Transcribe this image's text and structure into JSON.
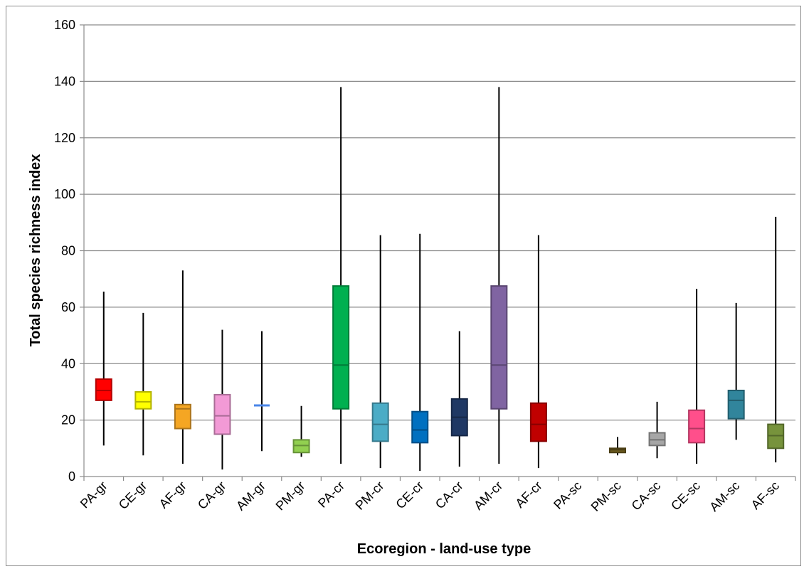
{
  "chart_data": {
    "type": "boxplot",
    "title": "",
    "xlabel": "Ecoregion - land-use type",
    "ylabel": "Total species richness index",
    "ylim": [
      0,
      160
    ],
    "yticks": [
      0,
      20,
      40,
      60,
      80,
      100,
      120,
      140,
      160
    ],
    "grid": true,
    "legend": "none",
    "categories": [
      "PA-gr",
      "CE-gr",
      "AF-gr",
      "CA-gr",
      "AM-gr",
      "PM-gr",
      "PA-cr",
      "PM-cr",
      "CE-cr",
      "CA-cr",
      "AM-cr",
      "AF-cr",
      "PA-sc",
      "PM-sc",
      "CA-sc",
      "CE-sc",
      "AM-sc",
      "AF-sc"
    ],
    "boxes": [
      {
        "category": "PA-gr",
        "min": 11,
        "q1": 27,
        "median": 30.5,
        "q3": 34.5,
        "max": 65.5,
        "color": "#ff0000"
      },
      {
        "category": "CE-gr",
        "min": 7.5,
        "q1": 24,
        "median": 26.5,
        "q3": 30,
        "max": 58,
        "color": "#ffff00"
      },
      {
        "category": "AF-gr",
        "min": 4.5,
        "q1": 17,
        "median": 24,
        "q3": 25.5,
        "max": 73,
        "color": "#f5a623"
      },
      {
        "category": "CA-gr",
        "min": 2.5,
        "q1": 15,
        "median": 21.5,
        "q3": 29,
        "max": 52,
        "color": "#f29ad6"
      },
      {
        "category": "AM-gr",
        "min": 9,
        "q1": 25.2,
        "median": 25.2,
        "q3": 25.2,
        "max": 51.5,
        "color": "#4a86e8"
      },
      {
        "category": "PM-gr",
        "min": 7,
        "q1": 8.5,
        "median": 11,
        "q3": 13,
        "max": 25,
        "color": "#92d050"
      },
      {
        "category": "PA-cr",
        "min": 4.5,
        "q1": 24,
        "median": 39.5,
        "q3": 67.5,
        "max": 138,
        "color": "#00b050"
      },
      {
        "category": "PM-cr",
        "min": 3,
        "q1": 12.5,
        "median": 18.5,
        "q3": 26,
        "max": 85.5,
        "color": "#4bacc6"
      },
      {
        "category": "CE-cr",
        "min": 2,
        "q1": 12,
        "median": 16.5,
        "q3": 23,
        "max": 86,
        "color": "#0070c0"
      },
      {
        "category": "CA-cr",
        "min": 3.5,
        "q1": 14.5,
        "median": 21,
        "q3": 27.5,
        "max": 51.5,
        "color": "#1f3864"
      },
      {
        "category": "AM-cr",
        "min": 4.5,
        "q1": 24,
        "median": 39.5,
        "q3": 67.5,
        "max": 138,
        "color": "#8064a2"
      },
      {
        "category": "AF-cr",
        "min": 3,
        "q1": 12.5,
        "median": 18.5,
        "q3": 26,
        "max": 85.5,
        "color": "#c00000"
      },
      {
        "category": "PA-sc",
        "min": null,
        "q1": null,
        "median": null,
        "q3": null,
        "max": null,
        "color": "#808080"
      },
      {
        "category": "PM-sc",
        "min": 7.5,
        "q1": 8.5,
        "median": 9.5,
        "q3": 10,
        "max": 14,
        "color": "#6b5a1e"
      },
      {
        "category": "CA-sc",
        "min": 6.5,
        "q1": 11,
        "median": 13,
        "q3": 15.5,
        "max": 26.5,
        "color": "#a6a6a6"
      },
      {
        "category": "CE-sc",
        "min": 4.5,
        "q1": 12,
        "median": 17,
        "q3": 23.5,
        "max": 66.5,
        "color": "#ff4f8b"
      },
      {
        "category": "AM-sc",
        "min": 13,
        "q1": 20.5,
        "median": 27,
        "q3": 30.5,
        "max": 61.5,
        "color": "#31859c"
      },
      {
        "category": "AF-sc",
        "min": 5,
        "q1": 10,
        "median": 14.5,
        "q3": 18.5,
        "max": 92,
        "color": "#77933c"
      }
    ]
  }
}
